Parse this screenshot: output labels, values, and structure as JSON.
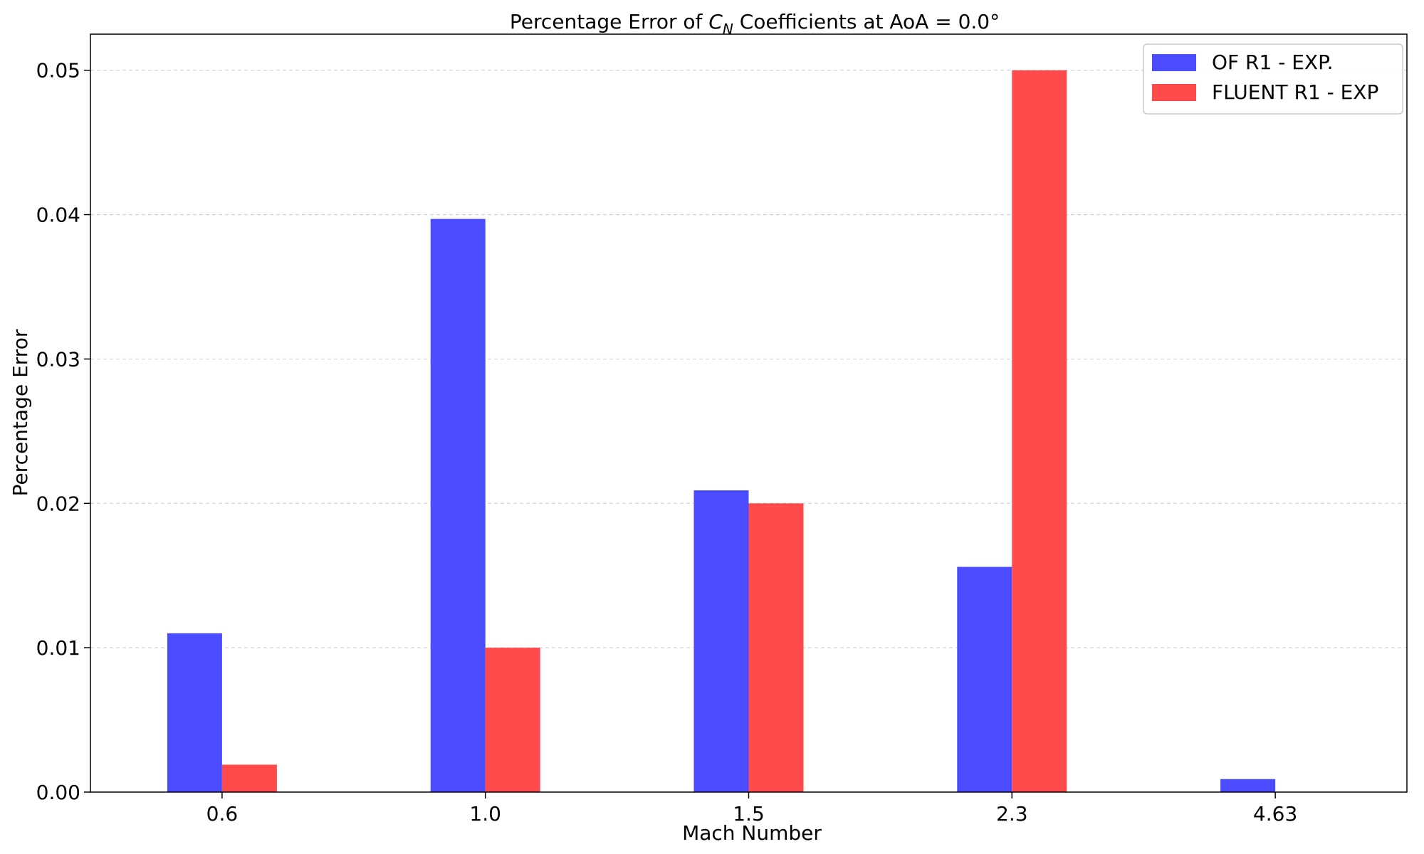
{
  "chart_data": {
    "type": "bar",
    "title_prefix": "Percentage Error of ",
    "title_symbol": "C",
    "title_subscript": "N",
    "title_suffix": " Coefficients at AoA = 0.0°",
    "xlabel": "Mach Number",
    "ylabel": "Percentage Error",
    "categories": [
      "0.6",
      "1.0",
      "1.5",
      "2.3",
      "4.63"
    ],
    "series": [
      {
        "name": "OF R1 - EXP.",
        "color": "#4b4bff",
        "values": [
          0.011,
          0.0397,
          0.0209,
          0.0156,
          0.0009
        ]
      },
      {
        "name": "FLUENT R1 - EXP",
        "color": "#ff4b4b",
        "values": [
          0.0019,
          0.01,
          0.02,
          0.05,
          0.0
        ]
      }
    ],
    "ylim": [
      0,
      0.0525
    ],
    "yticks": [
      "0.00",
      "0.01",
      "0.02",
      "0.03",
      "0.04",
      "0.05"
    ],
    "grid": "y-dashed",
    "legend_position": "top-right"
  }
}
